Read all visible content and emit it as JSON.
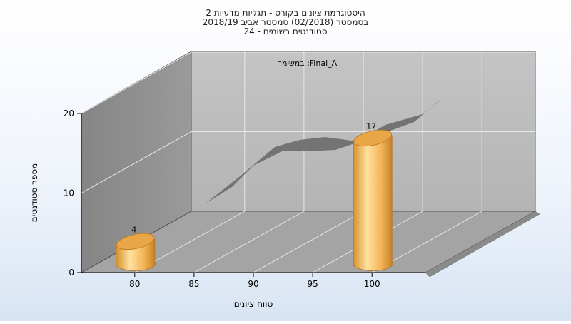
{
  "chart_data": {
    "type": "bar",
    "title_lines": [
      "היסטוגרמת ציונים בקורס - תגליות מדעיות 2",
      "בסמסטר  (02/2018)  סמסטר אביב 2018/19",
      "סטודנטים רשומים - 24"
    ],
    "annotation": "במשימה :Final_A",
    "xlabel": "טווח ציונים",
    "ylabel": "מספר סטודנטים",
    "x_ticks": [
      80,
      85,
      90,
      95,
      100
    ],
    "y_ticks": [
      0,
      10,
      20
    ],
    "ylim": [
      0,
      20
    ],
    "xlim": [
      75.5,
      104.5
    ],
    "bars": [
      {
        "x": 80,
        "value": 4,
        "label": "4"
      },
      {
        "x": 100,
        "value": 17,
        "label": "17"
      }
    ],
    "grid": true,
    "legend": "none",
    "colors": {
      "bar_light": "#ffd98a",
      "bar_mid": "#f0b050",
      "bar_dark": "#c88428",
      "back_wall": "#bdbdbd",
      "side_wall": "#8f8f8f",
      "floor": "#a3a3a3",
      "ribbon": "#6d6d6d"
    }
  }
}
